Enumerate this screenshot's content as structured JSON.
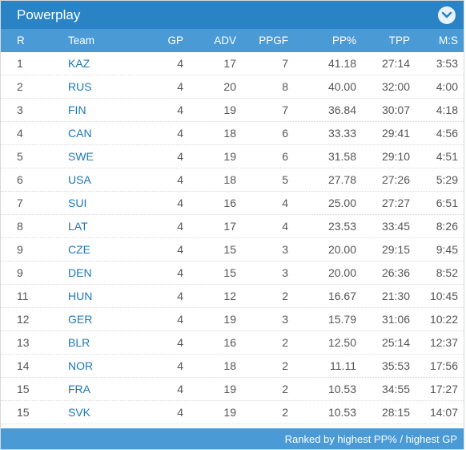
{
  "panel": {
    "title": "Powerplay",
    "toggle_icon": "chevron-down-icon",
    "accent_color": "#2a83c4",
    "header_color": "#4a9ad6",
    "link_color": "#1a78b8"
  },
  "table": {
    "headers": {
      "rank": "R",
      "team": "Team",
      "gp": "GP",
      "adv": "ADV",
      "ppgf": "PPGF",
      "pp": "PP%",
      "tpp": "TPP",
      "ms": "M:S"
    },
    "rows": [
      {
        "rank": "1",
        "team": "KAZ",
        "gp": "4",
        "adv": "17",
        "ppgf": "7",
        "pp": "41.18",
        "tpp": "27:14",
        "ms": "3:53"
      },
      {
        "rank": "2",
        "team": "RUS",
        "gp": "4",
        "adv": "20",
        "ppgf": "8",
        "pp": "40.00",
        "tpp": "32:00",
        "ms": "4:00"
      },
      {
        "rank": "3",
        "team": "FIN",
        "gp": "4",
        "adv": "19",
        "ppgf": "7",
        "pp": "36.84",
        "tpp": "30:07",
        "ms": "4:18"
      },
      {
        "rank": "4",
        "team": "CAN",
        "gp": "4",
        "adv": "18",
        "ppgf": "6",
        "pp": "33.33",
        "tpp": "29:41",
        "ms": "4:56"
      },
      {
        "rank": "5",
        "team": "SWE",
        "gp": "4",
        "adv": "19",
        "ppgf": "6",
        "pp": "31.58",
        "tpp": "29:10",
        "ms": "4:51"
      },
      {
        "rank": "6",
        "team": "USA",
        "gp": "4",
        "adv": "18",
        "ppgf": "5",
        "pp": "27.78",
        "tpp": "27:26",
        "ms": "5:29"
      },
      {
        "rank": "7",
        "team": "SUI",
        "gp": "4",
        "adv": "16",
        "ppgf": "4",
        "pp": "25.00",
        "tpp": "27:27",
        "ms": "6:51"
      },
      {
        "rank": "8",
        "team": "LAT",
        "gp": "4",
        "adv": "17",
        "ppgf": "4",
        "pp": "23.53",
        "tpp": "33:45",
        "ms": "8:26"
      },
      {
        "rank": "9",
        "team": "CZE",
        "gp": "4",
        "adv": "15",
        "ppgf": "3",
        "pp": "20.00",
        "tpp": "29:15",
        "ms": "9:45"
      },
      {
        "rank": "9",
        "team": "DEN",
        "gp": "4",
        "adv": "15",
        "ppgf": "3",
        "pp": "20.00",
        "tpp": "26:36",
        "ms": "8:52"
      },
      {
        "rank": "11",
        "team": "HUN",
        "gp": "4",
        "adv": "12",
        "ppgf": "2",
        "pp": "16.67",
        "tpp": "21:30",
        "ms": "10:45"
      },
      {
        "rank": "12",
        "team": "GER",
        "gp": "4",
        "adv": "19",
        "ppgf": "3",
        "pp": "15.79",
        "tpp": "31:06",
        "ms": "10:22"
      },
      {
        "rank": "13",
        "team": "BLR",
        "gp": "4",
        "adv": "16",
        "ppgf": "2",
        "pp": "12.50",
        "tpp": "25:14",
        "ms": "12:37"
      },
      {
        "rank": "14",
        "team": "NOR",
        "gp": "4",
        "adv": "18",
        "ppgf": "2",
        "pp": "11.11",
        "tpp": "35:53",
        "ms": "17:56"
      },
      {
        "rank": "15",
        "team": "FRA",
        "gp": "4",
        "adv": "19",
        "ppgf": "2",
        "pp": "10.53",
        "tpp": "34:55",
        "ms": "17:27"
      },
      {
        "rank": "15",
        "team": "SVK",
        "gp": "4",
        "adv": "19",
        "ppgf": "2",
        "pp": "10.53",
        "tpp": "28:15",
        "ms": "14:07"
      }
    ]
  },
  "footer": {
    "note": "Ranked by highest PP% / highest GP"
  }
}
